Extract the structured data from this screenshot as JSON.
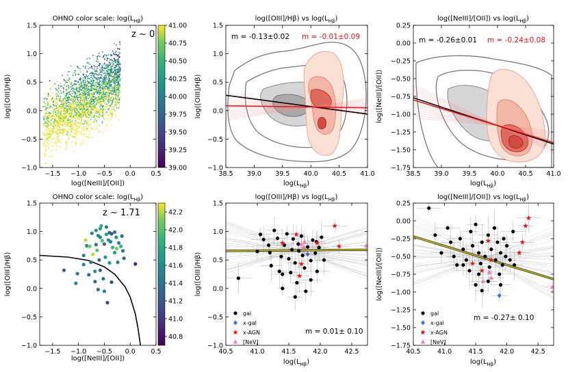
{
  "figure": {
    "panels": [
      {
        "id": "tl",
        "title": "OHNO   color scale: log($L_{H\\beta}$)",
        "title_display": "OHNO   color scale: log(L",
        "title_sub": "Hβ",
        "title_end": ")",
        "annotation": "z ~ 0",
        "xlabel": "log([NeIII]/[OII])",
        "ylabel": "log([OIII]/Hβ)",
        "xlim": [
          -1.75,
          0.5
        ],
        "ylim": [
          -1.0,
          1.5
        ],
        "xticks": [
          -1.5,
          -1.0,
          -0.5,
          0.0,
          0.5
        ],
        "yticks": [
          -1.0,
          -0.5,
          0.0,
          0.5,
          1.0,
          1.5
        ],
        "xtick_labels": [
          "−1.5",
          "−1.0",
          "−0.5",
          "0.0",
          "0.5"
        ],
        "ytick_labels": [
          "−1.0",
          "−0.5",
          "0.0",
          "0.5",
          "1.0",
          "1.5"
        ],
        "colorbar": {
          "min": 39.0,
          "max": 41.0,
          "ticks": [
            "41.00",
            "40.75",
            "40.50",
            "40.25",
            "40.00",
            "39.75",
            "39.50",
            "39.25",
            "39.00"
          ]
        }
      },
      {
        "id": "tm",
        "title": "log([OIII]/Hβ) vs log(L",
        "title_sub": "Hβ",
        "title_end": ")",
        "xlabel": "log(L",
        "xlabel_sub": "Hβ",
        "xlabel_end": ")",
        "ylabel": "log([OIII]/Hβ)",
        "slope_black": "m = -0.13±0.02",
        "slope_red": "m = -0.01±0.09",
        "xlim": [
          38.5,
          41.0
        ],
        "ylim": [
          -1.0,
          1.5
        ],
        "xtick_labels": [
          "38.5",
          "39.0",
          "39.5",
          "40.0",
          "40.5",
          "41.0"
        ],
        "ytick_labels": [
          "−1.0",
          "−0.5",
          "0.0",
          "0.5",
          "1.0",
          "1.5"
        ]
      },
      {
        "id": "tr",
        "title": "log([NeIII]/[OII]) vs log(L",
        "title_sub": "Hβ",
        "title_end": ")",
        "xlabel": "log(L",
        "xlabel_sub": "Hβ",
        "xlabel_end": ")",
        "ylabel": "log([NeIII]/[OII])",
        "slope_black": "m = -0.26±0.01",
        "slope_red": "m = -0.24±0.08",
        "xlim": [
          38.5,
          41.0
        ],
        "ylim": [
          -1.75,
          0.25
        ],
        "xtick_labels": [
          "38.5",
          "39.0",
          "39.5",
          "40.0",
          "40.5",
          "41.0"
        ],
        "ytick_labels": [
          "−1.75",
          "−1.50",
          "−1.25",
          "−1.00",
          "−0.75",
          "−0.50",
          "−0.25",
          "0.00",
          "0.25"
        ]
      },
      {
        "id": "bl",
        "title": "OHNO   color scale: log(L",
        "title_sub": "Hβ",
        "title_end": ")",
        "annotation": "z ~ 1.71",
        "xlabel": "log([NeIII]/[OII])",
        "ylabel": "log([OIII]/Hβ)",
        "xlim": [
          -1.75,
          0.5
        ],
        "ylim": [
          -1.0,
          1.5
        ],
        "xtick_labels": [
          "−1.5",
          "−1.0",
          "−0.5",
          "0.0",
          "0.5"
        ],
        "ytick_labels": [
          "−1.0",
          "−0.5",
          "0.0",
          "0.5",
          "1.0",
          "1.5"
        ],
        "colorbar": {
          "min": 40.7,
          "max": 42.3,
          "ticks": [
            "42.2",
            "42.0",
            "41.8",
            "41.6",
            "41.4",
            "41.2",
            "41.0",
            "40.8"
          ]
        }
      },
      {
        "id": "bm",
        "title": "log([OIII]/Hβ) vs log(L",
        "title_sub": "Hβ",
        "title_end": ")",
        "xlabel": "log(L",
        "xlabel_sub": "Hβ",
        "xlabel_end": ")",
        "ylabel": "log([OIII]/Hβ)",
        "slope": "m = 0.01± 0.10",
        "xlim": [
          40.5,
          42.75
        ],
        "ylim": [
          -1.0,
          1.5
        ],
        "xtick_labels": [
          "40.5",
          "41.0",
          "41.5",
          "42.0",
          "42.5"
        ],
        "ytick_labels": [
          "−1.0",
          "−0.5",
          "0.0",
          "0.5",
          "1.0",
          "1.5"
        ]
      },
      {
        "id": "br",
        "title": "log([NeIII]/[OII]) vs log(L",
        "title_sub": "Hβ",
        "title_end": ")",
        "xlabel": "log(L",
        "xlabel_sub": "Hβ",
        "xlabel_end": ")",
        "ylabel": "log([NeIII]/[OII])",
        "slope": "m = -0.27± 0.10",
        "xlim": [
          40.5,
          42.75
        ],
        "ylim": [
          -1.75,
          0.25
        ],
        "xtick_labels": [
          "40.5",
          "41.0",
          "41.5",
          "42.0",
          "42.5"
        ],
        "ytick_labels": [
          "−1.75",
          "−1.50",
          "−1.25",
          "−1.00",
          "−0.75",
          "−0.50",
          "−0.25",
          "0.00",
          "0.25"
        ]
      }
    ],
    "legend": [
      {
        "label": "gal",
        "marker": "circle",
        "color": "#000000"
      },
      {
        "label": "x-gal",
        "marker": "diamond",
        "color": "#3a6fd8"
      },
      {
        "label": "x-AGN",
        "marker": "star",
        "color": "#e8141c"
      },
      {
        "label": "[NeV]",
        "marker": "triangle",
        "color": "#f27ab6"
      }
    ],
    "colors": {
      "red": "#e8141c",
      "fit_yellow": "#c9c400",
      "viridis_top": "#fde725",
      "viridis_bottom": "#440154"
    }
  },
  "chart_data": [
    {
      "type": "scatter",
      "panel": "tl",
      "title": "OHNO color scale: log(LHβ)",
      "xlabel": "log([NeIII]/[OII])",
      "ylabel": "log([OIII]/Hβ)",
      "xlim": [
        -1.75,
        0.5
      ],
      "ylim": [
        -1.0,
        1.5
      ],
      "note": "dense cloud of thousands of z~0 galaxies colored by log(LHβ) 39.0–41.0",
      "cloud": {
        "x_range": [
          -1.7,
          -0.1
        ],
        "y_range": [
          -1.0,
          1.25
        ]
      }
    },
    {
      "type": "line",
      "panel": "tm",
      "xlim": [
        38.5,
        41.0
      ],
      "ylim": [
        -1.0,
        1.5
      ],
      "series": [
        {
          "name": "fit z~0 (black)",
          "slope": -0.13,
          "x": [
            38.5,
            41.0
          ],
          "y": [
            0.27,
            -0.06
          ]
        },
        {
          "name": "fit z~1.71 (red)",
          "slope": -0.01,
          "x": [
            38.5,
            41.0
          ],
          "y": [
            0.085,
            0.05
          ]
        }
      ]
    },
    {
      "type": "line",
      "panel": "tr",
      "xlim": [
        38.5,
        41.0
      ],
      "ylim": [
        -1.75,
        0.25
      ],
      "series": [
        {
          "name": "fit z~0 (black)",
          "slope": -0.26,
          "x": [
            38.5,
            41.0
          ],
          "y": [
            -0.77,
            -1.42
          ]
        },
        {
          "name": "fit z~1.71 (red)",
          "slope": -0.24,
          "x": [
            38.5,
            41.0
          ],
          "y": [
            -0.8,
            -1.4
          ]
        }
      ]
    },
    {
      "type": "scatter",
      "panel": "bl",
      "xlim": [
        -1.75,
        0.5
      ],
      "ylim": [
        -1.0,
        1.5
      ],
      "demarcation_curve": {
        "x": [
          -1.75,
          -1.2,
          -0.8,
          -0.5,
          -0.3,
          -0.1,
          0.0,
          0.1,
          0.15,
          0.2
        ],
        "y": [
          0.58,
          0.55,
          0.49,
          0.38,
          0.25,
          0.03,
          -0.15,
          -0.45,
          -0.7,
          -1.0
        ]
      },
      "points": [
        [
          -0.84,
          0.75,
          41.6
        ],
        [
          -0.78,
          0.74,
          42.1
        ],
        [
          -0.72,
          0.6,
          42.2
        ],
        [
          -0.66,
          0.77,
          41.4
        ],
        [
          -0.62,
          0.93,
          41.6
        ],
        [
          -0.58,
          0.9,
          41.5
        ],
        [
          -0.54,
          0.84,
          42.0
        ],
        [
          -0.5,
          0.78,
          41.3
        ],
        [
          -0.46,
          0.95,
          41.7
        ],
        [
          -0.42,
          0.85,
          41.6
        ],
        [
          -0.38,
          0.82,
          41.5
        ],
        [
          -0.34,
          0.72,
          41.9
        ],
        [
          -0.3,
          0.63,
          41.7
        ],
        [
          -0.26,
          0.7,
          42.1
        ],
        [
          -0.22,
          0.8,
          41.5
        ],
        [
          -0.18,
          0.74,
          41.9
        ],
        [
          -0.14,
          0.66,
          41.4
        ],
        [
          -0.74,
          0.97,
          41.5
        ],
        [
          -0.66,
          1.02,
          41.6
        ],
        [
          -0.56,
          1.1,
          41.8
        ],
        [
          -0.46,
          1.08,
          41.4
        ],
        [
          -0.4,
          0.98,
          41.3
        ],
        [
          -0.36,
          0.96,
          41.2
        ],
        [
          -0.3,
          0.99,
          41.4
        ],
        [
          -0.48,
          0.55,
          41.6
        ],
        [
          -0.6,
          0.5,
          41.3
        ],
        [
          -0.76,
          0.46,
          41.4
        ],
        [
          -0.9,
          0.42,
          41.5
        ],
        [
          -1.02,
          0.26,
          41.4
        ],
        [
          -0.8,
          0.24,
          41.3
        ],
        [
          -0.58,
          0.32,
          41.2
        ],
        [
          -0.4,
          0.45,
          41.7
        ],
        [
          -0.52,
          0.17,
          41.4
        ],
        [
          -0.68,
          0.12,
          41.3
        ],
        [
          -0.36,
          0.11,
          41.1
        ],
        [
          -0.62,
          -0.02,
          41.4
        ],
        [
          -0.5,
          -0.05,
          41.5
        ],
        [
          -0.44,
          -0.25,
          41.1
        ],
        [
          -0.9,
          0.58,
          41.5
        ],
        [
          -1.28,
          0.32,
          41.2
        ],
        [
          -1.05,
          0.09,
          41.5
        ],
        [
          -0.68,
          0.3,
          41.6
        ],
        [
          -0.86,
          0.85,
          42.2
        ],
        [
          -0.27,
          0.9,
          41.6
        ],
        [
          -0.16,
          0.92,
          41.3
        ],
        [
          0.1,
          0.43,
          40.9
        ],
        [
          -0.12,
          0.53,
          41.3
        ],
        [
          -0.24,
          0.46,
          41.5
        ],
        [
          -0.64,
          0.67,
          42.0
        ],
        [
          -0.58,
          1.05,
          41.7
        ]
      ]
    },
    {
      "type": "scatter",
      "panel": "bm",
      "xlim": [
        40.5,
        42.75
      ],
      "ylim": [
        -1.0,
        1.5
      ],
      "fit": {
        "slope": 0.01,
        "x": [
          40.5,
          42.75
        ],
        "y": [
          0.66,
          0.68
        ]
      },
      "series": [
        {
          "name": "gal",
          "points": [
            [
              40.7,
              0.18
            ],
            [
              41.0,
              0.65
            ],
            [
              41.05,
              0.95
            ],
            [
              41.1,
              0.86
            ],
            [
              41.18,
              0.76
            ],
            [
              41.22,
              0.4
            ],
            [
              41.27,
              1.02
            ],
            [
              41.32,
              0.88
            ],
            [
              41.38,
              0.56
            ],
            [
              41.4,
              0.25
            ],
            [
              41.43,
              0.76
            ],
            [
              41.47,
              0.96
            ],
            [
              41.5,
              0.52
            ],
            [
              41.53,
              0.28
            ],
            [
              41.55,
              0.68
            ],
            [
              41.57,
              0.87
            ],
            [
              41.6,
              0.45
            ],
            [
              41.63,
              0.1
            ],
            [
              41.66,
              0.66
            ],
            [
              41.7,
              0.92
            ],
            [
              41.72,
              0.58
            ],
            [
              41.75,
              0.36
            ],
            [
              41.77,
              -0.05
            ],
            [
              41.8,
              0.73
            ],
            [
              41.85,
              0.49
            ],
            [
              41.88,
              0.85
            ],
            [
              41.92,
              0.62
            ],
            [
              41.95,
              0.3
            ],
            [
              41.98,
              0.72
            ],
            [
              42.02,
              0.9
            ],
            [
              42.06,
              0.5
            ],
            [
              41.4,
              0.0
            ],
            [
              41.35,
              0.3
            ],
            [
              41.6,
              -0.15
            ],
            [
              41.85,
              0.15
            ],
            [
              41.2,
              0.63
            ],
            [
              41.65,
              0.78
            ],
            [
              41.94,
              0.82
            ]
          ]
        },
        {
          "name": "x-gal",
          "points": [
            [
              41.8,
              0.6
            ]
          ]
        },
        {
          "name": "x-AGN",
          "points": [
            [
              41.4,
              0.8
            ],
            [
              41.67,
              0.22
            ],
            [
              41.95,
              0.8
            ],
            [
              42.23,
              1.1
            ],
            [
              42.3,
              0.74
            ],
            [
              41.7,
              0.43
            ],
            [
              41.62,
              0.95
            ]
          ]
        },
        {
          "name": "[NeV]",
          "points": [
            [
              41.7,
              0.78
            ],
            [
              41.74,
              0.72
            ],
            [
              41.75,
              0.82
            ],
            [
              42.73,
              0.75
            ]
          ]
        }
      ]
    },
    {
      "type": "scatter",
      "panel": "br",
      "xlim": [
        40.5,
        42.75
      ],
      "ylim": [
        -1.75,
        0.25
      ],
      "fit": {
        "slope": -0.27,
        "x": [
          40.5,
          42.75
        ],
        "y": [
          -0.22,
          -0.82
        ]
      },
      "series": [
        {
          "name": "gal",
          "points": [
            [
              40.75,
              0.18
            ],
            [
              40.85,
              -0.2
            ],
            [
              40.95,
              -0.45
            ],
            [
              41.05,
              -0.1
            ],
            [
              41.1,
              -0.3
            ],
            [
              41.15,
              -0.5
            ],
            [
              41.2,
              -0.62
            ],
            [
              41.25,
              -0.25
            ],
            [
              41.3,
              -0.4
            ],
            [
              41.35,
              -0.55
            ],
            [
              41.4,
              -0.7
            ],
            [
              41.42,
              -0.15
            ],
            [
              41.45,
              -0.35
            ],
            [
              41.5,
              -0.05
            ],
            [
              41.55,
              -0.45
            ],
            [
              41.58,
              -0.6
            ],
            [
              41.6,
              -0.3
            ],
            [
              41.65,
              -0.5
            ],
            [
              41.7,
              -0.2
            ],
            [
              41.72,
              -0.65
            ],
            [
              41.75,
              -0.4
            ],
            [
              41.8,
              -0.1
            ],
            [
              41.82,
              -0.55
            ],
            [
              41.85,
              -0.3
            ],
            [
              41.88,
              -0.75
            ],
            [
              41.9,
              -0.45
            ],
            [
              41.93,
              -0.62
            ],
            [
              41.95,
              -0.25
            ],
            [
              41.98,
              -0.5
            ],
            [
              42.0,
              -0.35
            ],
            [
              42.05,
              -0.55
            ],
            [
              42.1,
              -0.15
            ],
            [
              42.12,
              -0.62
            ],
            [
              41.7,
              -0.85
            ],
            [
              41.9,
              -0.9
            ],
            [
              41.55,
              -0.75
            ],
            [
              41.5,
              -0.9
            ],
            [
              41.6,
              -0.98
            ],
            [
              41.3,
              -0.62
            ]
          ]
        },
        {
          "name": "x-gal",
          "points": [
            [
              41.88,
              -1.05
            ]
          ]
        },
        {
          "name": "x-AGN",
          "points": [
            [
              41.45,
              -0.6
            ],
            [
              41.7,
              -0.28
            ],
            [
              42.2,
              -0.45
            ],
            [
              42.25,
              -0.3
            ],
            [
              42.3,
              -0.07
            ],
            [
              42.35,
              0.04
            ],
            [
              41.6,
              -0.7
            ],
            [
              41.75,
              -0.55
            ]
          ]
        },
        {
          "name": "[NeV]",
          "points": [
            [
              41.72,
              -0.72
            ],
            [
              41.75,
              -0.8
            ],
            [
              41.62,
              -0.85
            ],
            [
              42.73,
              -0.93
            ]
          ]
        }
      ]
    }
  ]
}
